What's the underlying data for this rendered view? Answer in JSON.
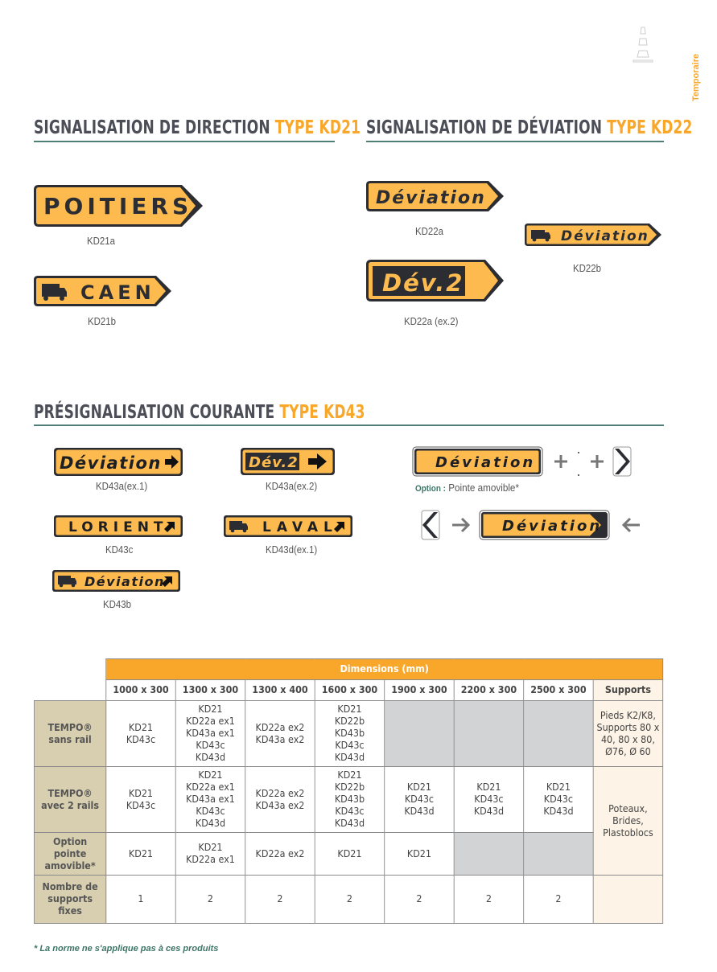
{
  "side_tab": "Temporaire",
  "colors": {
    "sign_yellow": "#fdbb4f",
    "sign_dark": "#2b2d33",
    "accent": "#f9a72a",
    "rule": "#4f7f77",
    "label_bg": "#d8cfb0"
  },
  "icons": [
    "traffic-cone-icon",
    "truck-icon",
    "arrow-right-icon",
    "arrow-up-right-icon",
    "chevron-right-icon",
    "chevron-left-icon",
    "plus-icon",
    "arrow-left-icon"
  ],
  "kd21": {
    "title": "SIGNALISATION DE DIRECTION ",
    "title_accent": "TYPE KD21",
    "signs": [
      {
        "text": "POITIERS",
        "caption": "KD21a"
      },
      {
        "text": "CAEN",
        "caption": "KD21b"
      }
    ]
  },
  "kd22": {
    "title": "SIGNALISATION DE DÉVIATION ",
    "title_accent": "TYPE KD22",
    "signs": [
      {
        "text": "Déviation",
        "caption": "KD22a"
      },
      {
        "text": "Déviation",
        "caption": "KD22b"
      },
      {
        "text": "Dév.2",
        "caption": "KD22a (ex.2)"
      }
    ]
  },
  "kd43": {
    "title": "PRÉSIGNALISATION COURANTE ",
    "title_accent": "TYPE KD43",
    "signs": [
      {
        "text": "Déviation",
        "caption": "KD43a(ex.1)"
      },
      {
        "text": "Dév.2",
        "caption": "KD43a(ex.2)"
      },
      {
        "text": "LORIENT",
        "caption": "KD43c"
      },
      {
        "text": "LAVAL",
        "caption": "KD43d(ex.1)"
      },
      {
        "text": "Déviation",
        "caption": "KD43b"
      }
    ],
    "option": {
      "sign_text": "Déviation",
      "label": "Option :",
      "text": " Pointe amovible*",
      "assembled_text": "Déviation"
    }
  },
  "table": {
    "header": "Dimensions (mm)",
    "sizes": [
      "1000 x 300",
      "1300 x 300",
      "1300 x 400",
      "1600 x 300",
      "1900 x 300",
      "2200 x 300",
      "2500 x 300"
    ],
    "supports_header": "Supports",
    "rows": [
      {
        "label": "TEMPO® sans rail",
        "cells": [
          "KD21\nKD43c",
          "KD21\nKD22a ex1\nKD43a ex1\nKD43c\nKD43d",
          "KD22a ex2\nKD43a ex2",
          "KD21\nKD22b\nKD43b\nKD43c\nKD43d",
          "",
          "",
          ""
        ],
        "supports": "Pieds K2/K8, Supports 80 x 40, 80 x 80, Ø76, Ø 60"
      },
      {
        "label": "TEMPO® avec 2 rails",
        "cells": [
          "KD21\nKD43c",
          "KD21\nKD22a ex1\nKD43a ex1\nKD43c\nKD43d",
          "KD22a ex2\nKD43a ex2",
          "KD21\nKD22b\nKD43b\nKD43c\nKD43d",
          "KD21\nKD43c\nKD43d",
          "KD21\nKD43c\nKD43d",
          "KD21\nKD43c\nKD43d"
        ],
        "supports": "Poteaux, Brides, Plastoblocs"
      },
      {
        "label": "Option pointe amovible*",
        "cells": [
          "KD21",
          "KD21\nKD22a ex1",
          "KD22a ex2",
          "KD21",
          "KD21",
          "",
          ""
        ]
      },
      {
        "label": "Nombre de supports fixes",
        "cells": [
          "1",
          "2",
          "2",
          "2",
          "2",
          "2",
          "2"
        ],
        "supports": ""
      }
    ]
  },
  "footnote": "* La norme ne s'applique pas à ces produits"
}
